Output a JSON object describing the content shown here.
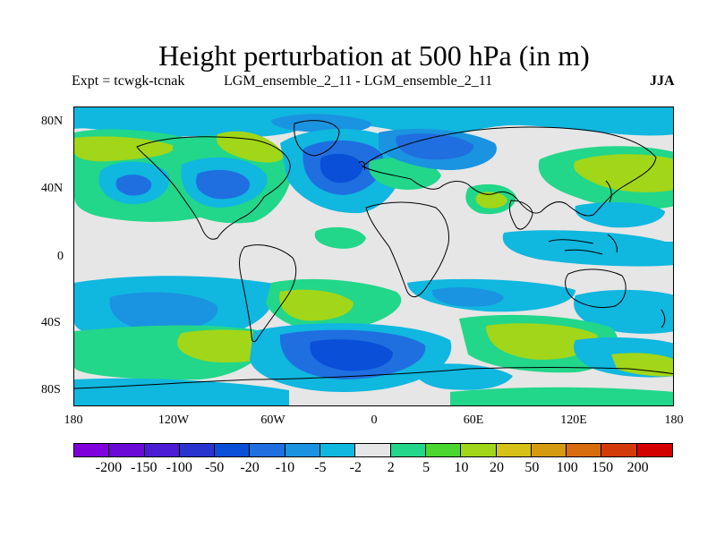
{
  "header": {
    "title": "Height perturbation at 500 hPa (in m)",
    "expt": "Expt = tcwgk-tcnak",
    "comparison": "LGM_ensemble_2_11 - LGM_ensemble_2_11",
    "season": "JJA"
  },
  "axes": {
    "lat_labels": [
      "80N",
      "40N",
      "0",
      "40S",
      "80S"
    ],
    "lon_labels": [
      "180",
      "120W",
      "60W",
      "0",
      "60E",
      "120E",
      "180"
    ]
  },
  "colorbar": {
    "colors": [
      "#7f00dc",
      "#6a0ad6",
      "#4b1cd3",
      "#2a34cf",
      "#0a4fd8",
      "#1f6fe0",
      "#1a93e0",
      "#10b7df",
      "#e6e6e6",
      "#22d68a",
      "#4bd72f",
      "#a2d618",
      "#d6c117",
      "#d69a10",
      "#d86b0c",
      "#d43a0a",
      "#d40000"
    ],
    "labels": [
      "-200",
      "-150",
      "-100",
      "-50",
      "-20",
      "-10",
      "-5",
      "-2",
      "2",
      "5",
      "10",
      "20",
      "50",
      "100",
      "150",
      "200"
    ]
  },
  "map": {
    "projection": "cylindrical-equidistant",
    "lon_range": [
      -180,
      180
    ],
    "lat_range": [
      -90,
      90
    ],
    "background_color": "#e6e6e6",
    "coastline_color": "#000000"
  }
}
